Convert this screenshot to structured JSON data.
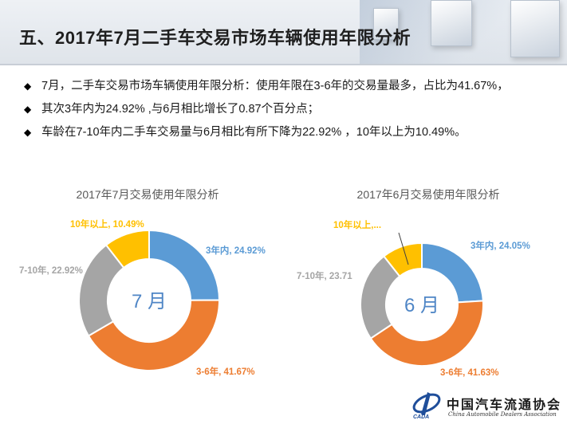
{
  "slide": {
    "title": "五、2017年7月二手车交易市场车辆使用年限分析",
    "bullets": [
      "7月，二手车交易市场车辆使用年限分析：使用年限在3-6年的交易量最多，占比为41.67%，",
      "其次3年内为24.92% ,与6月相比增长了0.87个百分点；",
      "车龄在7-10年内二手车交易量与6月相比有所下降为22.92% ，10年以上为10.49%。"
    ],
    "bullet_icon": "diamond-icon"
  },
  "colors": {
    "blue": "#5b9bd5",
    "orange": "#ed7d31",
    "gray": "#a5a5a5",
    "gold": "#ffc000"
  },
  "chart_data": [
    {
      "type": "pie",
      "variant": "donut",
      "title": "2017年7月交易使用年限分析",
      "center_label": "7 月",
      "categories": [
        "3年内",
        "3-6年",
        "7-10年",
        "10年以上"
      ],
      "values": [
        24.92,
        41.67,
        22.92,
        10.49
      ],
      "data_labels": [
        "3年内, 24.92%",
        "3-6年, 41.67%",
        "7-10年, 22.92%",
        "10年以上, 10.49%"
      ],
      "colors": [
        "#5b9bd5",
        "#ed7d31",
        "#a5a5a5",
        "#ffc000"
      ]
    },
    {
      "type": "pie",
      "variant": "donut",
      "title": "2017年6月交易使用年限分析",
      "center_label": "6 月",
      "categories": [
        "3年内",
        "3-6年",
        "7-10年",
        "10年以上"
      ],
      "values": [
        24.05,
        41.63,
        23.71,
        10.61
      ],
      "data_labels": [
        "3年内, 24.05%",
        "3-6年, 41.63%",
        "7-10年, 23.71",
        "10年以上,..."
      ],
      "colors": [
        "#5b9bd5",
        "#ed7d31",
        "#a5a5a5",
        "#ffc000"
      ]
    }
  ],
  "logo": {
    "name": "中国汽车流通协会",
    "subtitle": "China Automobile Dealers Association",
    "abbr": "CADA"
  }
}
